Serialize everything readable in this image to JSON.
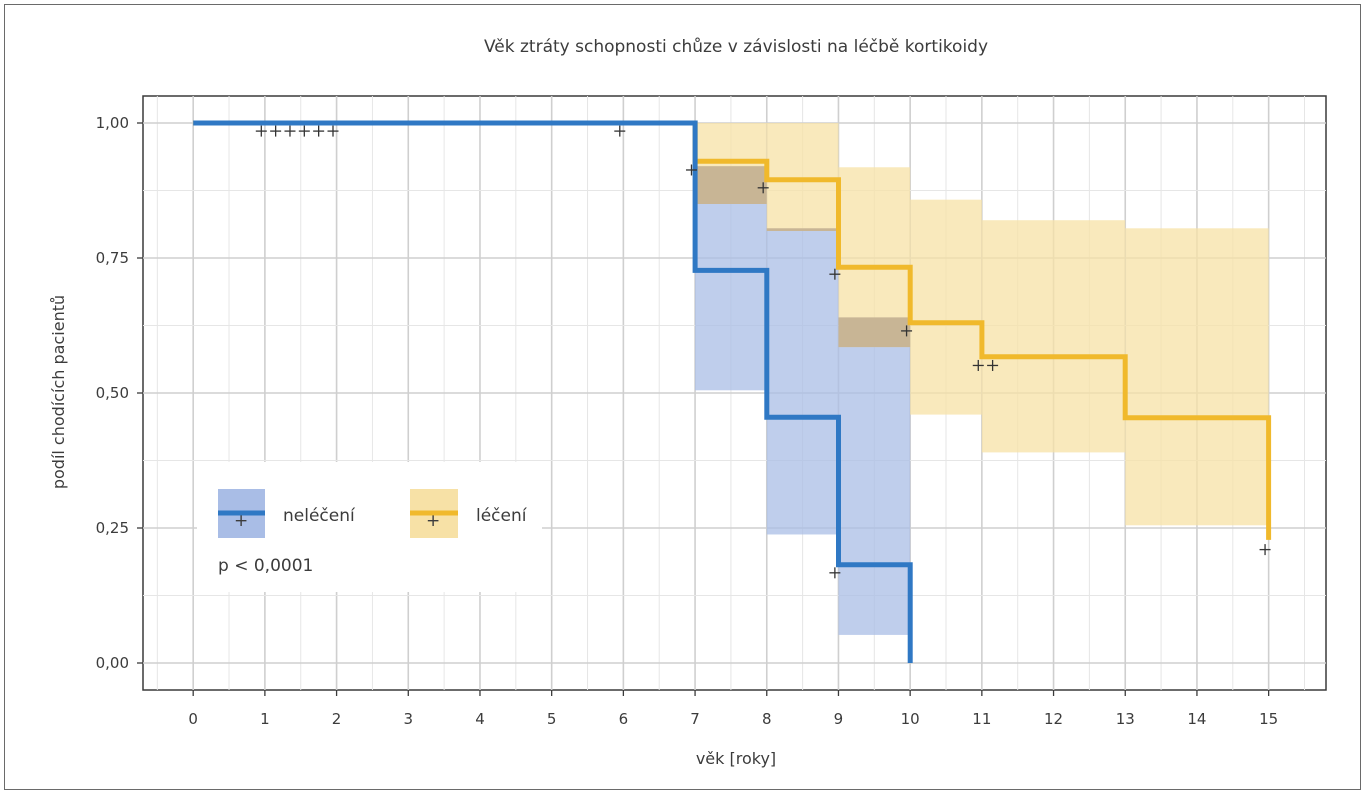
{
  "chart_data": {
    "type": "step",
    "title": "Věk ztráty schopnosti chůze v závislosti na léčbě kortikoidy",
    "xlabel": "věk [roky]",
    "ylabel": "podíl chodících pacientů",
    "xlim": [
      -0.7,
      15.8
    ],
    "ylim": [
      -0.05,
      1.05
    ],
    "x_ticks": [
      "0",
      "1",
      "2",
      "3",
      "4",
      "5",
      "6",
      "7",
      "8",
      "9",
      "10",
      "11",
      "12",
      "13",
      "14",
      "15"
    ],
    "y_ticks": [
      "0,00",
      "0,25",
      "0,50",
      "0,75",
      "1,00"
    ],
    "grid": true,
    "legend_position": "bottom-left",
    "annotation": "p < 0,0001",
    "colors": {
      "nelecene_line": "#2f78c4",
      "nelecene_ci": "#a9bde6",
      "lecene_line": "#f0b92c",
      "lecene_ci": "#f7e1a6",
      "overlap_ci": "#c8b595"
    },
    "series": [
      {
        "name": "neléčení",
        "steps": [
          [
            0,
            1.0
          ],
          [
            7,
            1.0
          ],
          [
            7,
            0.727
          ],
          [
            8,
            0.727
          ],
          [
            8,
            0.455
          ],
          [
            9,
            0.455
          ],
          [
            9,
            0.182
          ],
          [
            10,
            0.182
          ],
          [
            10,
            0.0
          ]
        ],
        "ci": [
          {
            "x0": 7,
            "x1": 8,
            "lo": 0.505,
            "hi": 0.92
          },
          {
            "x0": 8,
            "x1": 9,
            "lo": 0.238,
            "hi": 0.805
          },
          {
            "x0": 9,
            "x1": 10,
            "lo": 0.052,
            "hi": 0.64
          }
        ],
        "censored": [
          [
            6.95,
            0.913
          ],
          [
            8.95,
            0.167
          ]
        ]
      },
      {
        "name": "léčení",
        "steps": [
          [
            0,
            1.0
          ],
          [
            7,
            1.0
          ],
          [
            7,
            0.929
          ],
          [
            8,
            0.929
          ],
          [
            8,
            0.895
          ],
          [
            9,
            0.895
          ],
          [
            9,
            0.733
          ],
          [
            10,
            0.733
          ],
          [
            10,
            0.63
          ],
          [
            11,
            0.63
          ],
          [
            11,
            0.567
          ],
          [
            13,
            0.567
          ],
          [
            13,
            0.454
          ],
          [
            15,
            0.454
          ],
          [
            15,
            0.228
          ]
        ],
        "ci": [
          {
            "x0": 7,
            "x1": 8,
            "lo": 0.85,
            "hi": 1.0
          },
          {
            "x0": 8,
            "x1": 9,
            "lo": 0.8,
            "hi": 1.0
          },
          {
            "x0": 9,
            "x1": 10,
            "lo": 0.585,
            "hi": 0.918
          },
          {
            "x0": 10,
            "x1": 11,
            "lo": 0.46,
            "hi": 0.858
          },
          {
            "x0": 11,
            "x1": 13,
            "lo": 0.39,
            "hi": 0.82
          },
          {
            "x0": 13,
            "x1": 15,
            "lo": 0.255,
            "hi": 0.805
          }
        ],
        "censored": [
          [
            0.95,
            0.985
          ],
          [
            1.15,
            0.985
          ],
          [
            1.35,
            0.985
          ],
          [
            1.55,
            0.985
          ],
          [
            1.75,
            0.985
          ],
          [
            1.95,
            0.985
          ],
          [
            5.95,
            0.985
          ],
          [
            7.95,
            0.88
          ],
          [
            8.95,
            0.72
          ],
          [
            9.95,
            0.615
          ],
          [
            10.95,
            0.551
          ],
          [
            11.15,
            0.551
          ],
          [
            14.95,
            0.21
          ]
        ]
      }
    ]
  }
}
